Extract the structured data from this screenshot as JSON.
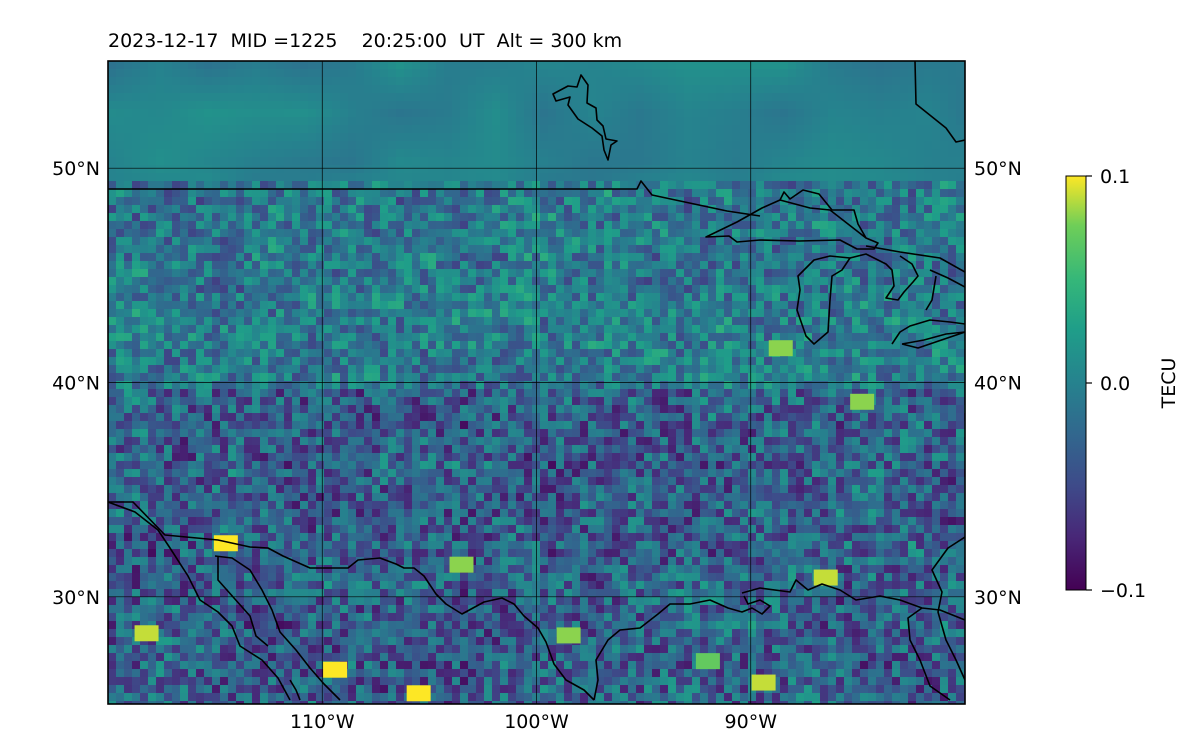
{
  "title": "2023-12-17  MID =1225    20:25:00  UT  Alt = 300 km",
  "chart_data": {
    "type": "heatmap",
    "title": "2023-12-17  MID =1225    20:25:00  UT  Alt = 300 km",
    "x_ticks": [
      {
        "value": -110,
        "label": "110°W"
      },
      {
        "value": -100,
        "label": "100°W"
      },
      {
        "value": -90,
        "label": "90°W"
      }
    ],
    "y_ticks": [
      {
        "value": 30,
        "label": "30°N"
      },
      {
        "value": 40,
        "label": "40°N"
      },
      {
        "value": 50,
        "label": "50°N"
      }
    ],
    "xlim": [
      -120,
      -80
    ],
    "ylim": [
      25,
      55
    ],
    "grid": true,
    "colorbar": {
      "label": "TECU",
      "range": [
        -0.1,
        0.1
      ],
      "ticks": [
        {
          "value": 0.1,
          "label": "0.1"
        },
        {
          "value": 0.0,
          "label": "0.0"
        },
        {
          "value": -0.1,
          "label": "−0.1"
        }
      ],
      "colormap": "viridis"
    },
    "highlights": [
      {
        "lon": -109.4,
        "lat": 26.6,
        "value": 0.1
      },
      {
        "lon": -105.5,
        "lat": 25.5,
        "value": 0.1
      },
      {
        "lon": -114.5,
        "lat": 32.5,
        "value": 0.1
      },
      {
        "lon": -118.2,
        "lat": 28.3,
        "value": 0.09
      },
      {
        "lon": -86.5,
        "lat": 30.9,
        "value": 0.09
      },
      {
        "lon": -89.4,
        "lat": 26.0,
        "value": 0.09
      },
      {
        "lon": -84.8,
        "lat": 39.1,
        "value": 0.08
      },
      {
        "lon": -88.6,
        "lat": 41.6,
        "value": 0.08
      },
      {
        "lon": -103.5,
        "lat": 31.5,
        "value": 0.08
      },
      {
        "lon": -98.5,
        "lat": 28.2,
        "value": 0.08
      },
      {
        "lon": -92.0,
        "lat": 27.0,
        "value": 0.07
      }
    ]
  },
  "colors": {
    "viridis_low": "#440154",
    "viridis_mid": "#21918c",
    "viridis_high": "#fde725",
    "border": "#000000"
  }
}
